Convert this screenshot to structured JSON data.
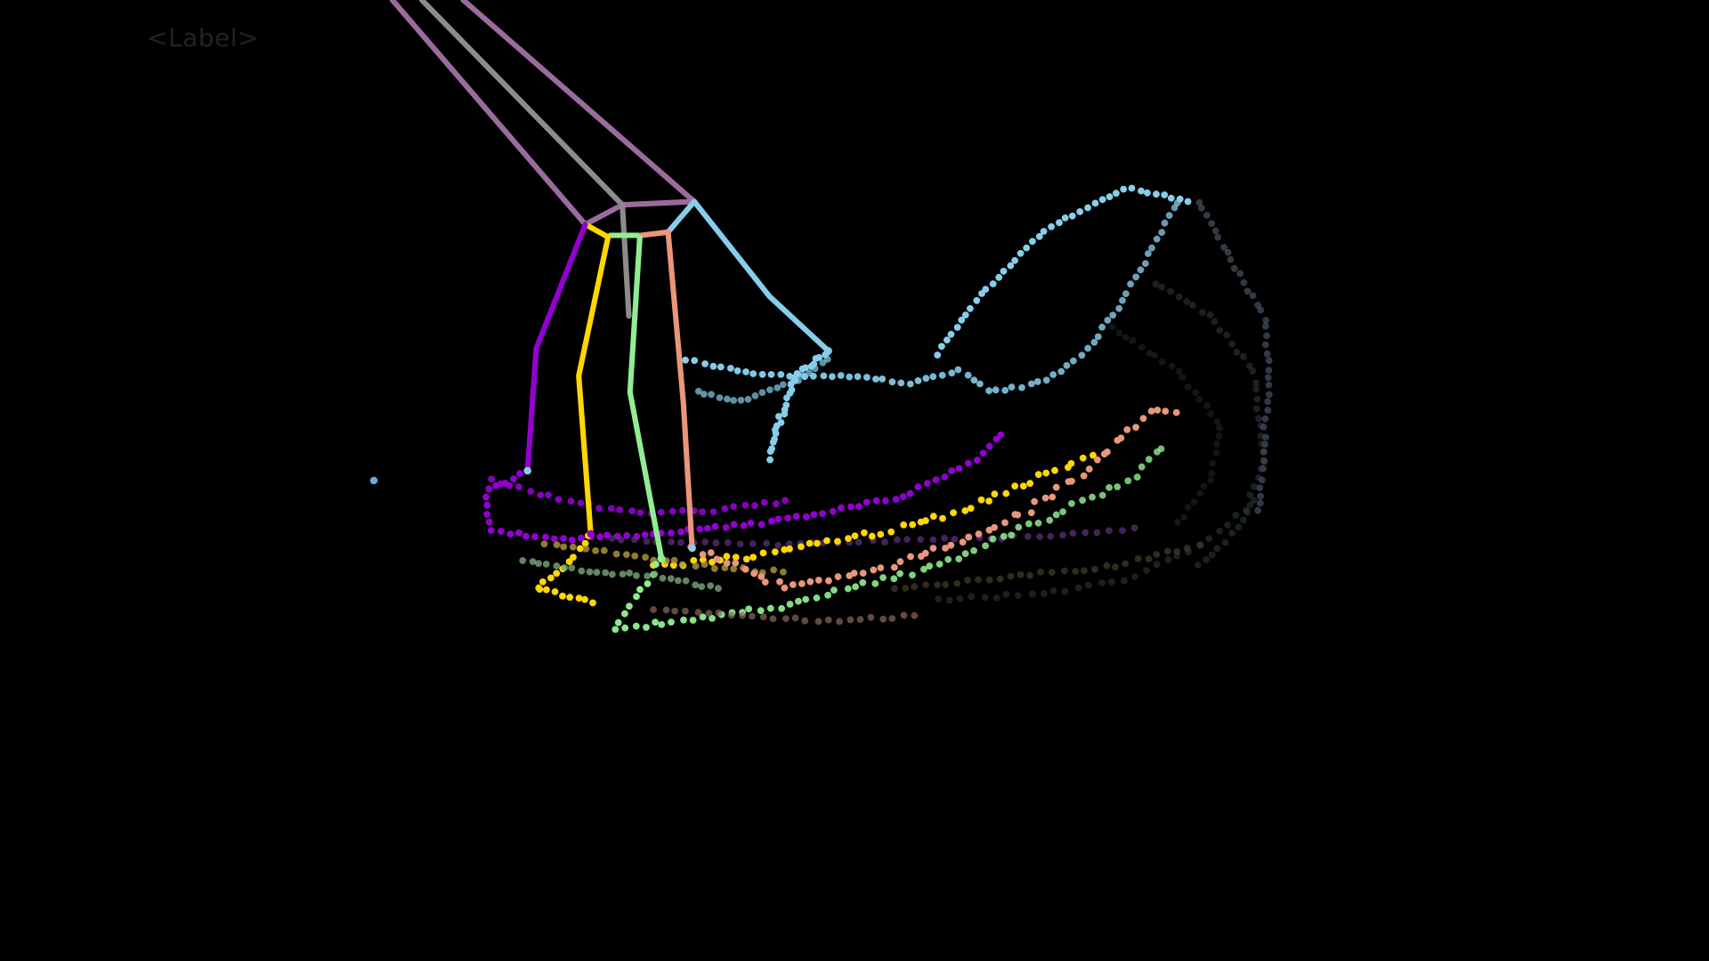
{
  "overlay": {
    "label_text": "<Label>"
  },
  "palette": {
    "background": "#000000",
    "label_text": "#222222",
    "thumb": "#9400D3",
    "index": "#FFD700",
    "middle": "#90EE90",
    "ring": "#E9967A",
    "pinky": "#87CEEB",
    "palm": "#9B6B9E",
    "wrist": "#8C8C8C",
    "stray_point": "#6FA8DC"
  },
  "skeleton": {
    "joint_names": [
      "thumb",
      "index",
      "middle",
      "ring",
      "pinky",
      "palm",
      "wrist"
    ]
  }
}
